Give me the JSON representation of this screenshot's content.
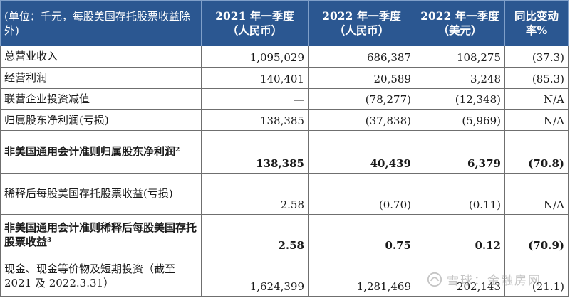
{
  "header": {
    "col0": "(单位：千元，每股美国存托股票收益除外)",
    "col1": "2021 年一季度（人民币）",
    "col2": "2022 年一季度（人民币）",
    "col3": "2022 年一季度（美元）",
    "col4": "同比变动率%"
  },
  "rows": [
    {
      "label": "总营业收入",
      "c1": "1,095,029",
      "c2": "686,387",
      "c3": "108,275",
      "c4": "(37.3)"
    },
    {
      "label": "经营利润",
      "c1": "140,401",
      "c2": "20,589",
      "c3": "3,248",
      "c4": "(85.3)"
    },
    {
      "label": "联营企业投资减值",
      "c1": "—",
      "c2": "(78,277)",
      "c3": "(12,348)",
      "c4": "N/A"
    },
    {
      "label": "归属股东净利润(亏损)",
      "c1": "138,385",
      "c2": "(37,838)",
      "c3": "(5,969)",
      "c4": "N/A"
    },
    {
      "label": "非美国通用会计准则归属股东净利润",
      "sup": "2",
      "c1": "138,385",
      "c2": "40,439",
      "c3": "6,379",
      "c4": "(70.8)"
    },
    {
      "label": "稀释后每股美国存托股票收益(亏损)",
      "c1": "2.58",
      "c2": "(0.70)",
      "c3": "(0.11)",
      "c4": "N/A"
    },
    {
      "label": "非美国通用会计准则稀释后每股美国存托股票收益",
      "sup": "3",
      "c1": "2.58",
      "c2": "0.75",
      "c3": "0.12",
      "c4": "(70.9)"
    },
    {
      "label": "现金、现金等价物及短期投资（截至 2021 及 2022.3.31）",
      "c1": "1,624,399",
      "c2": "1,281,469",
      "c3": "202,143",
      "c4": "(21.1)"
    }
  ],
  "watermark": {
    "text": "雪球：金融房网",
    "icon": "snowball-logo-icon"
  }
}
